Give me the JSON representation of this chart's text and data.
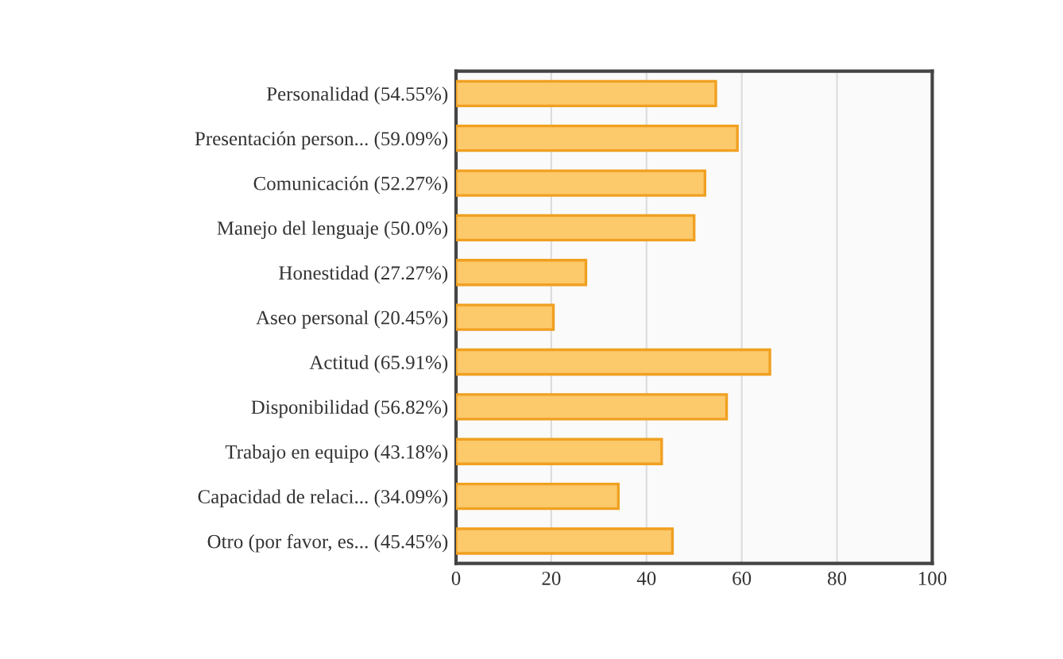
{
  "chart_data": {
    "type": "bar",
    "orientation": "horizontal",
    "categories": [
      "Personalidad (54.55%)",
      "Presentación person... (59.09%)",
      "Comunicación (52.27%)",
      "Manejo del lenguaje (50.0%)",
      "Honestidad (27.27%)",
      "Aseo personal (20.45%)",
      "Actitud (65.91%)",
      "Disponibilidad (56.82%)",
      "Trabajo en equipo (43.18%)",
      "Capacidad de relaci... (34.09%)",
      "Otro (por favor, es... (45.45%)"
    ],
    "values": [
      54.55,
      59.09,
      52.27,
      50.0,
      27.27,
      20.45,
      65.91,
      56.82,
      43.18,
      34.09,
      45.45
    ],
    "color": "#fcc96b",
    "xlim": [
      0,
      100
    ],
    "xticks": [
      0,
      20,
      40,
      60,
      80,
      100
    ],
    "grid": "x"
  }
}
